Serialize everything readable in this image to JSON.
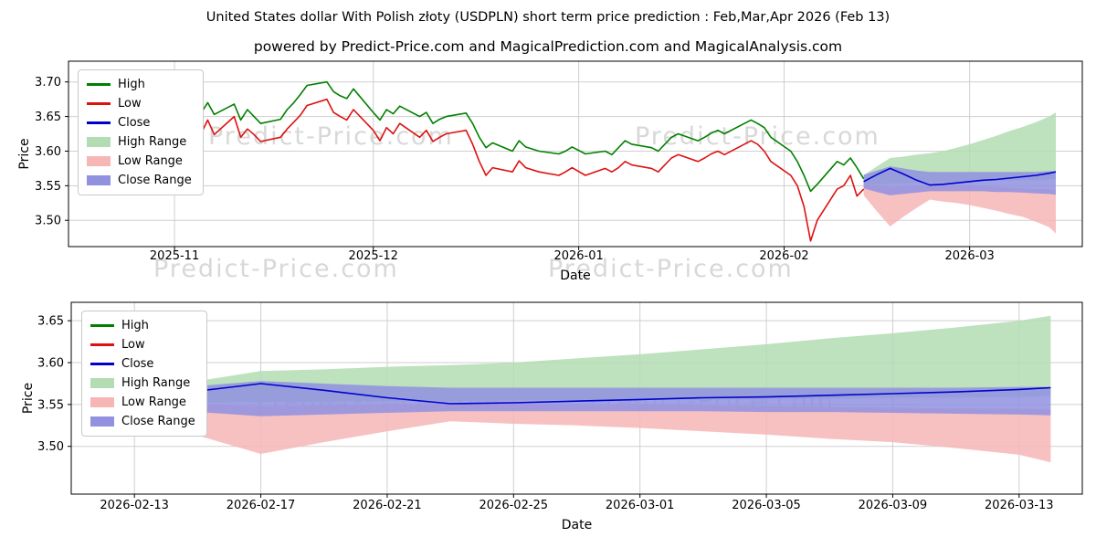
{
  "page": {
    "title": "United States dollar With Polish złoty (USDPLN) short term price prediction : Feb,Mar,Apr 2026 (Feb 13)",
    "subtitle": "powered by Predict-Price.com and MagicalPrediction.com and MagicalAnalysis.com",
    "watermark_text": "Predict-Price.com"
  },
  "colors": {
    "high": "#008000",
    "low": "#dd1111",
    "close": "#0000cc",
    "high_range": "#b3dcb3",
    "low_range": "#f7b6b6",
    "close_range": "#9191e0",
    "grid": "#cfcfcf",
    "plot_border": "#000000",
    "watermark": "#d8d8d8"
  },
  "legend": [
    {
      "label": "High",
      "type": "line",
      "color_key": "high"
    },
    {
      "label": "Low",
      "type": "line",
      "color_key": "low"
    },
    {
      "label": "Close",
      "type": "line",
      "color_key": "close"
    },
    {
      "label": "High Range",
      "type": "patch",
      "color_key": "high_range"
    },
    {
      "label": "Low Range",
      "type": "patch",
      "color_key": "low_range"
    },
    {
      "label": "Close Range",
      "type": "patch",
      "color_key": "close_range"
    }
  ],
  "historical": {
    "dates": [
      "2025-10-20",
      "2025-10-21",
      "2025-10-22",
      "2025-10-23",
      "2025-10-24",
      "2025-10-27",
      "2025-10-28",
      "2025-10-29",
      "2025-10-30",
      "2025-10-31",
      "2025-11-03",
      "2025-11-04",
      "2025-11-05",
      "2025-11-06",
      "2025-11-07",
      "2025-11-10",
      "2025-11-11",
      "2025-11-12",
      "2025-11-13",
      "2025-11-14",
      "2025-11-17",
      "2025-11-18",
      "2025-11-19",
      "2025-11-20",
      "2025-11-21",
      "2025-11-24",
      "2025-11-25",
      "2025-11-26",
      "2025-11-27",
      "2025-11-28",
      "2025-12-01",
      "2025-12-02",
      "2025-12-03",
      "2025-12-04",
      "2025-12-05",
      "2025-12-08",
      "2025-12-09",
      "2025-12-10",
      "2025-12-11",
      "2025-12-12",
      "2025-12-15",
      "2025-12-16",
      "2025-12-17",
      "2025-12-18",
      "2025-12-19",
      "2025-12-22",
      "2025-12-23",
      "2025-12-24",
      "2025-12-26",
      "2025-12-29",
      "2025-12-30",
      "2025-12-31",
      "2026-01-02",
      "2026-01-05",
      "2026-01-06",
      "2026-01-07",
      "2026-01-08",
      "2026-01-09",
      "2026-01-12",
      "2026-01-13",
      "2026-01-14",
      "2026-01-15",
      "2026-01-16",
      "2026-01-19",
      "2026-01-20",
      "2026-01-21",
      "2026-01-22",
      "2026-01-23",
      "2026-01-26",
      "2026-01-27",
      "2026-01-28",
      "2026-01-29",
      "2026-01-30",
      "2026-02-02",
      "2026-02-03",
      "2026-02-04",
      "2026-02-05",
      "2026-02-06",
      "2026-02-09",
      "2026-02-10",
      "2026-02-11",
      "2026-02-12",
      "2026-02-13"
    ],
    "high": [
      3.655,
      3.67,
      3.645,
      3.662,
      3.68,
      3.7,
      3.69,
      3.705,
      3.712,
      3.715,
      3.71,
      3.662,
      3.655,
      3.67,
      3.653,
      3.668,
      3.645,
      3.66,
      3.65,
      3.64,
      3.646,
      3.66,
      3.67,
      3.682,
      3.695,
      3.7,
      3.686,
      3.68,
      3.676,
      3.69,
      3.656,
      3.645,
      3.66,
      3.654,
      3.665,
      3.65,
      3.656,
      3.64,
      3.646,
      3.65,
      3.655,
      3.64,
      3.62,
      3.605,
      3.612,
      3.6,
      3.615,
      3.606,
      3.6,
      3.596,
      3.6,
      3.606,
      3.596,
      3.6,
      3.595,
      3.605,
      3.615,
      3.61,
      3.605,
      3.6,
      3.61,
      3.62,
      3.625,
      3.615,
      3.62,
      3.626,
      3.63,
      3.625,
      3.64,
      3.645,
      3.64,
      3.634,
      3.62,
      3.6,
      3.585,
      3.565,
      3.542,
      3.552,
      3.585,
      3.58,
      3.59,
      3.576,
      3.56
    ],
    "low": [
      3.624,
      3.64,
      3.615,
      3.632,
      3.655,
      3.67,
      3.66,
      3.678,
      3.686,
      3.69,
      3.695,
      3.636,
      3.625,
      3.645,
      3.624,
      3.65,
      3.62,
      3.632,
      3.624,
      3.614,
      3.62,
      3.632,
      3.642,
      3.652,
      3.666,
      3.675,
      3.656,
      3.65,
      3.645,
      3.66,
      3.63,
      3.615,
      3.634,
      3.625,
      3.64,
      3.62,
      3.63,
      3.614,
      3.62,
      3.625,
      3.63,
      3.61,
      3.585,
      3.565,
      3.576,
      3.57,
      3.586,
      3.576,
      3.57,
      3.565,
      3.57,
      3.576,
      3.565,
      3.575,
      3.57,
      3.576,
      3.585,
      3.58,
      3.575,
      3.57,
      3.58,
      3.59,
      3.595,
      3.585,
      3.59,
      3.596,
      3.6,
      3.595,
      3.61,
      3.615,
      3.61,
      3.6,
      3.585,
      3.565,
      3.55,
      3.52,
      3.47,
      3.5,
      3.545,
      3.55,
      3.565,
      3.535,
      3.545
    ]
  },
  "forecast": {
    "dates": [
      "2026-02-13",
      "2026-02-15",
      "2026-02-17",
      "2026-02-19",
      "2026-02-21",
      "2026-02-23",
      "2026-02-25",
      "2026-02-27",
      "2026-03-01",
      "2026-03-03",
      "2026-03-05",
      "2026-03-07",
      "2026-03-09",
      "2026-03-11",
      "2026-03-13",
      "2026-03-14"
    ],
    "close": [
      3.556,
      3.566,
      3.575,
      3.567,
      3.558,
      3.551,
      3.552,
      3.554,
      3.556,
      3.558,
      3.559,
      3.561,
      3.563,
      3.565,
      3.568,
      3.57
    ],
    "high_range": {
      "upper": [
        3.565,
        3.578,
        3.59,
        3.592,
        3.595,
        3.597,
        3.6,
        3.605,
        3.61,
        3.616,
        3.622,
        3.629,
        3.635,
        3.642,
        3.65,
        3.656
      ],
      "lower": [
        3.552,
        3.552,
        3.553,
        3.553,
        3.554,
        3.554,
        3.555,
        3.555,
        3.556,
        3.556,
        3.557,
        3.557,
        3.558,
        3.558,
        3.559,
        3.56
      ]
    },
    "low_range": {
      "upper": [
        3.552,
        3.55,
        3.548,
        3.549,
        3.55,
        3.551,
        3.551,
        3.55,
        3.55,
        3.549,
        3.548,
        3.547,
        3.546,
        3.545,
        3.545,
        3.544
      ],
      "lower": [
        3.536,
        3.513,
        3.491,
        3.505,
        3.518,
        3.53,
        3.527,
        3.525,
        3.522,
        3.518,
        3.514,
        3.509,
        3.505,
        3.498,
        3.49,
        3.481
      ]
    },
    "close_range": {
      "upper": [
        3.566,
        3.572,
        3.578,
        3.575,
        3.572,
        3.57,
        3.57,
        3.57,
        3.57,
        3.57,
        3.57,
        3.57,
        3.57,
        3.57,
        3.571,
        3.571
      ],
      "lower": [
        3.546,
        3.541,
        3.536,
        3.538,
        3.54,
        3.542,
        3.542,
        3.542,
        3.542,
        3.542,
        3.541,
        3.541,
        3.54,
        3.539,
        3.538,
        3.537
      ]
    }
  },
  "chart_data": [
    {
      "type": "line",
      "xlabel": "Date",
      "ylabel": "Price",
      "xlim": [
        "2025-10-16",
        "2026-03-18"
      ],
      "ylim": [
        3.462,
        3.73
      ],
      "x_ticks": [
        {
          "date": "2025-11-01",
          "label": "2025-11"
        },
        {
          "date": "2025-12-01",
          "label": "2025-12"
        },
        {
          "date": "2026-01-01",
          "label": "2026-01"
        },
        {
          "date": "2026-02-01",
          "label": "2026-02"
        },
        {
          "date": "2026-03-01",
          "label": "2026-03"
        }
      ],
      "y_ticks": [
        3.5,
        3.55,
        3.6,
        3.65,
        3.7
      ],
      "series": [
        {
          "name": "High",
          "color_key": "high",
          "x_ref": "historical.dates",
          "y_ref": "historical.high"
        },
        {
          "name": "Low",
          "color_key": "low",
          "x_ref": "historical.dates",
          "y_ref": "historical.low"
        },
        {
          "name": "Close",
          "color_key": "close",
          "x_ref": "forecast.dates",
          "y_ref": "forecast.close"
        }
      ],
      "bands": [
        {
          "name": "High Range",
          "color_key": "high_range",
          "x_ref": "forecast.dates",
          "upper_ref": "forecast.high_range.upper",
          "lower_ref": "forecast.high_range.lower"
        },
        {
          "name": "Low Range",
          "color_key": "low_range",
          "x_ref": "forecast.dates",
          "upper_ref": "forecast.low_range.upper",
          "lower_ref": "forecast.low_range.lower"
        },
        {
          "name": "Close Range",
          "color_key": "close_range",
          "x_ref": "forecast.dates",
          "upper_ref": "forecast.close_range.upper",
          "lower_ref": "forecast.close_range.lower"
        }
      ]
    },
    {
      "type": "line",
      "xlabel": "Date",
      "ylabel": "Price",
      "xlim": [
        "2026-02-11",
        "2026-03-15"
      ],
      "ylim": [
        3.443,
        3.672
      ],
      "x_ticks": [
        {
          "date": "2026-02-13",
          "label": "2026-02-13"
        },
        {
          "date": "2026-02-17",
          "label": "2026-02-17"
        },
        {
          "date": "2026-02-21",
          "label": "2026-02-21"
        },
        {
          "date": "2026-02-25",
          "label": "2026-02-25"
        },
        {
          "date": "2026-03-01",
          "label": "2026-03-01"
        },
        {
          "date": "2026-03-05",
          "label": "2026-03-05"
        },
        {
          "date": "2026-03-09",
          "label": "2026-03-09"
        },
        {
          "date": "2026-03-13",
          "label": "2026-03-13"
        }
      ],
      "y_ticks": [
        3.5,
        3.55,
        3.6,
        3.65
      ],
      "series": [
        {
          "name": "Close",
          "color_key": "close",
          "x_ref": "forecast.dates",
          "y_ref": "forecast.close"
        }
      ],
      "bands": [
        {
          "name": "High Range",
          "color_key": "high_range",
          "x_ref": "forecast.dates",
          "upper_ref": "forecast.high_range.upper",
          "lower_ref": "forecast.high_range.lower"
        },
        {
          "name": "Low Range",
          "color_key": "low_range",
          "x_ref": "forecast.dates",
          "upper_ref": "forecast.low_range.upper",
          "lower_ref": "forecast.low_range.lower"
        },
        {
          "name": "Close Range",
          "color_key": "close_range",
          "x_ref": "forecast.dates",
          "upper_ref": "forecast.close_range.upper",
          "lower_ref": "forecast.close_range.lower"
        }
      ]
    }
  ]
}
